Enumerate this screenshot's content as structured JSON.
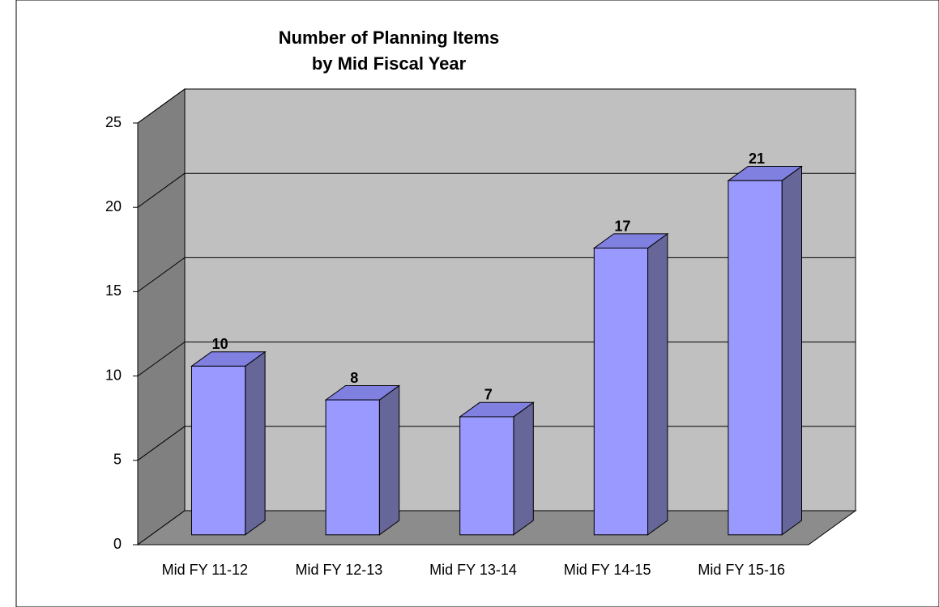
{
  "chart_data": {
    "type": "bar3d",
    "title": "Number of Planning Items",
    "subtitle": "by Mid Fiscal Year",
    "categories": [
      "Mid FY 11-12",
      "Mid FY 12-13",
      "Mid FY 13-14",
      "Mid FY 14-15",
      "Mid FY 15-16"
    ],
    "values": [
      10,
      8,
      7,
      17,
      21
    ],
    "color": "#9999ff",
    "ylim": [
      0,
      25
    ],
    "yticks": [
      0,
      5,
      10,
      15,
      20,
      25
    ],
    "grid": true
  }
}
